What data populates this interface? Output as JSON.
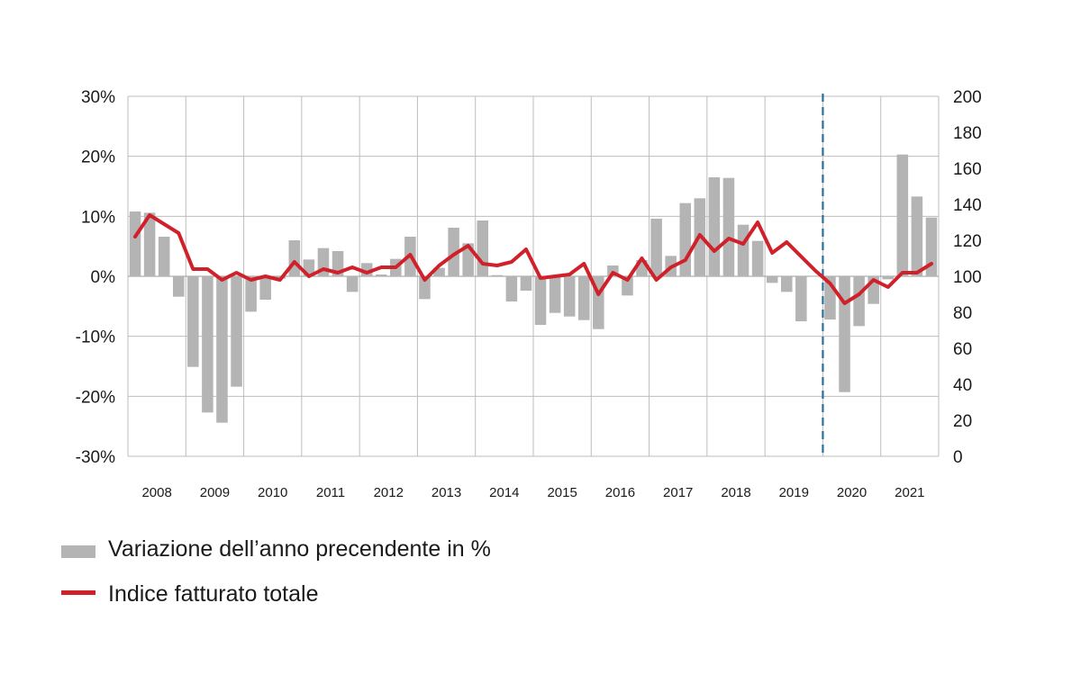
{
  "chart_data": {
    "type": "bar+line",
    "title": "",
    "xlabel": "",
    "ylabel_left": "",
    "ylabel_right": "",
    "years": [
      "2008",
      "2009",
      "2010",
      "2011",
      "2012",
      "2013",
      "2014",
      "2015",
      "2016",
      "2017",
      "2018",
      "2019",
      "2020",
      "2021"
    ],
    "quarters_per_year": 4,
    "left_axis": {
      "ylim": [
        -30,
        30
      ],
      "ticks": [
        30,
        20,
        10,
        0,
        -10,
        -20,
        -30
      ],
      "tick_labels": [
        "30%",
        "20%",
        "10%",
        "0%",
        "-10%",
        "-20%",
        "-30%"
      ]
    },
    "right_axis": {
      "ylim": [
        0,
        200
      ],
      "ticks": [
        200,
        180,
        160,
        140,
        120,
        100,
        80,
        60,
        40,
        20,
        0
      ],
      "tick_labels": [
        "200",
        "180",
        "160",
        "140",
        "120",
        "100",
        "80",
        "60",
        "40",
        "20",
        "0"
      ]
    },
    "grid": true,
    "legend_position": "bottom-left",
    "vertical_marker": {
      "style": "dashed",
      "year_boundary": "2019|2020",
      "color": "#2a6f97"
    },
    "series": [
      {
        "name": "Variazione dell’anno precendente in %",
        "type": "bar",
        "axis": "left",
        "color": "#b4b4b4",
        "values": [
          10.8,
          10.6,
          6.6,
          -3.4,
          -15.1,
          -22.7,
          -24.4,
          -18.4,
          -5.9,
          -3.9,
          -0.4,
          6.0,
          2.8,
          4.7,
          4.2,
          -2.6,
          2.2,
          0.3,
          2.9,
          6.6,
          -3.8,
          1.4,
          8.1,
          5.5,
          9.3,
          0.2,
          -4.2,
          -2.4,
          -8.1,
          -6.1,
          -6.7,
          -7.3,
          -8.8,
          1.8,
          -3.2,
          2.7,
          9.6,
          3.4,
          12.2,
          13.0,
          16.5,
          16.4,
          8.6,
          5.9,
          -1.1,
          -2.6,
          -7.5,
          0.0,
          -7.2,
          -19.3,
          -8.3,
          -4.6,
          -0.5,
          20.3,
          13.3,
          9.8
        ]
      },
      {
        "name": "Indice fatturato totale",
        "type": "line",
        "axis": "right",
        "color": "#d0212b",
        "values": [
          122,
          134,
          129,
          124,
          104,
          104,
          98,
          102,
          98,
          100,
          98,
          108,
          100,
          104,
          102,
          105,
          102,
          105,
          105,
          112,
          98,
          106,
          112,
          117,
          107,
          106,
          108,
          115,
          99,
          100,
          101,
          107,
          90,
          102,
          98,
          110,
          98,
          105,
          109,
          123,
          114,
          121,
          118,
          130,
          113,
          119,
          111,
          103,
          96,
          85,
          90,
          98,
          94,
          102,
          102,
          107
        ]
      }
    ]
  },
  "legend": {
    "bar_label": "Variazione dell’anno precendente in %",
    "line_label": "Indice fatturato totale"
  }
}
